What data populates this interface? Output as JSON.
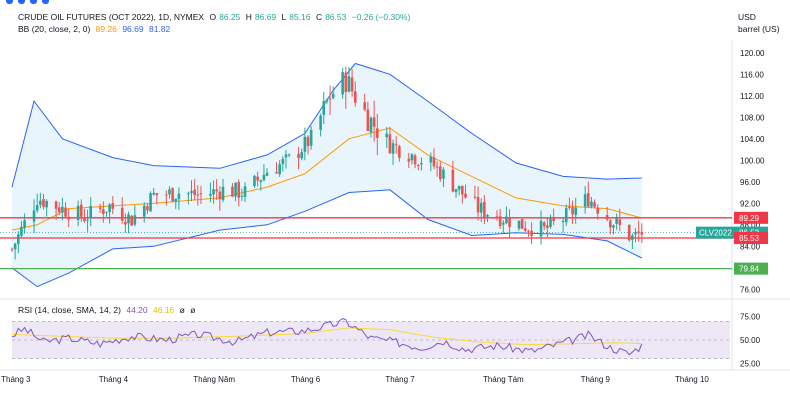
{
  "header": {
    "symbol": "CRUDE OIL FUTURES (OCT 2022), 1D, NYMEX",
    "o_label": "O",
    "o_value": "86.25",
    "h_label": "H",
    "h_value": "86.69",
    "l_label": "L",
    "l_value": "85.16",
    "c_label": "C",
    "c_value": "86.53",
    "change": "−0.26 (−0.30%)",
    "bb_label": "BB (20, close, 2, 0)",
    "bb_basis": "89.26",
    "bb_upper": "96.69",
    "bb_lower": "81.82",
    "currency": "USD",
    "unit": "barrel (US)"
  },
  "colors": {
    "up": "#26a69a",
    "down": "#ef5350",
    "bb_band": "#2962ff",
    "bb_fill": "#e3f2fd",
    "bb_basis": "#ff9800",
    "line_red": "#f23645",
    "line_green": "#4caf50",
    "rsi": "#7e57c2",
    "rsi_ma": "#fdd835",
    "rsi_fill": "#ede7f6"
  },
  "price_scale": {
    "ticks": [
      "120.00",
      "116.00",
      "112.00",
      "108.00",
      "104.00",
      "100.00",
      "96.00",
      "92.00",
      "88.00",
      "84.00",
      "80.00",
      "76.00"
    ],
    "levels": [
      {
        "label": "89.29",
        "value": 89.29,
        "kind": "red-line"
      },
      {
        "label": "86.53",
        "value": 86.53,
        "kind": "last"
      },
      {
        "label": "85.53",
        "value": 85.53,
        "kind": "red-line"
      },
      {
        "label": "79.84",
        "value": 79.84,
        "kind": "green-line"
      }
    ],
    "ticker_tag": "CLV2022"
  },
  "rsi_panel": {
    "label": "RSI (14, close, SMA, 14, 2)",
    "rsi_value": "44.20",
    "ma_value": "46.16",
    "extra1": "ø",
    "extra2": "ø",
    "ticks": [
      "75.00",
      "50.00",
      "25.00"
    ]
  },
  "time_axis": [
    "Tháng 3",
    "Tháng 4",
    "Tháng Năm",
    "Tháng 6",
    "Tháng 7",
    "Tháng Tám",
    "Tháng 9",
    "Tháng 10"
  ],
  "chart_data": {
    "type": "candlestick",
    "symbol": "CRUDE OIL FUTURES (OCT 2022), 1D, NYMEX",
    "ylim": [
      74,
      122
    ],
    "x_range": [
      "2022-02-28",
      "2022-10-14"
    ],
    "horizontal_lines": [
      89.29,
      85.53,
      79.84
    ],
    "close_path": [
      [
        "2022-02-28",
        83.5
      ],
      [
        "2022-03-08",
        93
      ],
      [
        "2022-03-16",
        91
      ],
      [
        "2022-03-23",
        89.5
      ],
      [
        "2022-03-31",
        91.5
      ],
      [
        "2022-04-07",
        89
      ],
      [
        "2022-04-14",
        93.5
      ],
      [
        "2022-04-22",
        94
      ],
      [
        "2022-04-29",
        93.5
      ],
      [
        "2022-05-06",
        94.5
      ],
      [
        "2022-05-13",
        94
      ],
      [
        "2022-05-20",
        98
      ],
      [
        "2022-05-27",
        100
      ],
      [
        "2022-06-03",
        104
      ],
      [
        "2022-06-09",
        112
      ],
      [
        "2022-06-14",
        115
      ],
      [
        "2022-06-21",
        108
      ],
      [
        "2022-06-28",
        103
      ],
      [
        "2022-07-05",
        101
      ],
      [
        "2022-07-12",
        99
      ],
      [
        "2022-07-19",
        95
      ],
      [
        "2022-07-26",
        91
      ],
      [
        "2022-08-02",
        89.5
      ],
      [
        "2022-08-09",
        88
      ],
      [
        "2022-08-16",
        87
      ],
      [
        "2022-08-23",
        89.5
      ],
      [
        "2022-08-30",
        93
      ],
      [
        "2022-09-06",
        89
      ],
      [
        "2022-09-13",
        85.5
      ],
      [
        "2022-09-16",
        86.53
      ]
    ],
    "bb_upper": [
      [
        "2022-02-28",
        95
      ],
      [
        "2022-03-07",
        111
      ],
      [
        "2022-03-16",
        104
      ],
      [
        "2022-04-01",
        100.5
      ],
      [
        "2022-04-14",
        99
      ],
      [
        "2022-05-05",
        98.5
      ],
      [
        "2022-05-20",
        101
      ],
      [
        "2022-06-01",
        105
      ],
      [
        "2022-06-10",
        113
      ],
      [
        "2022-06-17",
        118
      ],
      [
        "2022-06-28",
        116
      ],
      [
        "2022-07-10",
        111
      ],
      [
        "2022-07-24",
        105
      ],
      [
        "2022-08-07",
        99.5
      ],
      [
        "2022-08-22",
        97
      ],
      [
        "2022-09-05",
        96.5
      ],
      [
        "2022-09-16",
        96.69
      ]
    ],
    "bb_lower": [
      [
        "2022-02-28",
        80
      ],
      [
        "2022-03-08",
        76.5
      ],
      [
        "2022-03-18",
        79
      ],
      [
        "2022-04-01",
        83.5
      ],
      [
        "2022-04-14",
        84
      ],
      [
        "2022-05-05",
        87
      ],
      [
        "2022-05-20",
        88
      ],
      [
        "2022-06-01",
        90.5
      ],
      [
        "2022-06-15",
        94
      ],
      [
        "2022-06-28",
        94.5
      ],
      [
        "2022-07-10",
        89
      ],
      [
        "2022-07-24",
        86
      ],
      [
        "2022-08-07",
        86.5
      ],
      [
        "2022-08-22",
        86.2
      ],
      [
        "2022-09-05",
        85
      ],
      [
        "2022-09-16",
        81.82
      ]
    ],
    "bb_basis": [
      [
        "2022-02-28",
        87
      ],
      [
        "2022-03-08",
        88
      ],
      [
        "2022-03-18",
        91
      ],
      [
        "2022-04-01",
        91.5
      ],
      [
        "2022-04-14",
        92
      ],
      [
        "2022-05-05",
        93
      ],
      [
        "2022-05-20",
        95
      ],
      [
        "2022-06-01",
        97.5
      ],
      [
        "2022-06-15",
        104
      ],
      [
        "2022-06-28",
        106
      ],
      [
        "2022-07-10",
        101
      ],
      [
        "2022-07-24",
        97
      ],
      [
        "2022-08-07",
        93
      ],
      [
        "2022-08-22",
        91.5
      ],
      [
        "2022-09-05",
        91
      ],
      [
        "2022-09-16",
        89.26
      ]
    ],
    "rsi": {
      "ylim": [
        20,
        80
      ],
      "levels": [
        70,
        50,
        30
      ],
      "rsi_path": [
        [
          "2022-02-28",
          55
        ],
        [
          "2022-03-04",
          62
        ],
        [
          "2022-03-10",
          48
        ],
        [
          "2022-03-18",
          52
        ],
        [
          "2022-03-28",
          46
        ],
        [
          "2022-04-07",
          54
        ],
        [
          "2022-04-18",
          50
        ],
        [
          "2022-04-28",
          56
        ],
        [
          "2022-05-10",
          48
        ],
        [
          "2022-05-20",
          58
        ],
        [
          "2022-06-01",
          60
        ],
        [
          "2022-06-09",
          66
        ],
        [
          "2022-06-14",
          70
        ],
        [
          "2022-06-22",
          52
        ],
        [
          "2022-07-01",
          47
        ],
        [
          "2022-07-08",
          42
        ],
        [
          "2022-07-15",
          49
        ],
        [
          "2022-07-22",
          40
        ],
        [
          "2022-08-01",
          44
        ],
        [
          "2022-08-12",
          38
        ],
        [
          "2022-08-22",
          47
        ],
        [
          "2022-08-30",
          55
        ],
        [
          "2022-09-06",
          42
        ],
        [
          "2022-09-12",
          35
        ],
        [
          "2022-09-16",
          44.2
        ]
      ],
      "ma_path": [
        [
          "2022-02-28",
          56
        ],
        [
          "2022-03-15",
          54
        ],
        [
          "2022-04-01",
          52
        ],
        [
          "2022-04-20",
          52
        ],
        [
          "2022-05-10",
          54
        ],
        [
          "2022-06-01",
          57
        ],
        [
          "2022-06-15",
          63
        ],
        [
          "2022-06-28",
          61
        ],
        [
          "2022-07-12",
          53
        ],
        [
          "2022-07-26",
          48
        ],
        [
          "2022-08-10",
          45
        ],
        [
          "2022-08-25",
          46
        ],
        [
          "2022-09-08",
          47
        ],
        [
          "2022-09-16",
          46.16
        ]
      ]
    }
  }
}
